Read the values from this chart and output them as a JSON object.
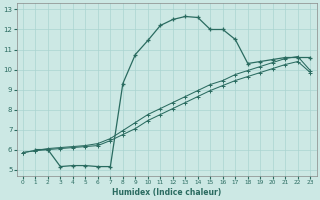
{
  "xlabel": "Humidex (Indice chaleur)",
  "bg_color": "#cce8e4",
  "grid_color": "#aad4d0",
  "line_color": "#2a6b60",
  "xlim": [
    -0.5,
    23.5
  ],
  "ylim": [
    4.7,
    13.3
  ],
  "xticks": [
    0,
    1,
    2,
    3,
    4,
    5,
    6,
    7,
    8,
    9,
    10,
    11,
    12,
    13,
    14,
    15,
    16,
    17,
    18,
    19,
    20,
    21,
    22,
    23
  ],
  "yticks": [
    5,
    6,
    7,
    8,
    9,
    10,
    11,
    12,
    13
  ],
  "line1_x": [
    1,
    2,
    3,
    4,
    5,
    6,
    7,
    8,
    9,
    10,
    11,
    12,
    13,
    14,
    15,
    16,
    17,
    18,
    19,
    20,
    21,
    22,
    23
  ],
  "line1_y": [
    6.0,
    6.0,
    5.15,
    5.2,
    5.2,
    5.15,
    5.15,
    9.3,
    10.75,
    11.45,
    12.2,
    12.5,
    12.65,
    12.6,
    12.0,
    12.0,
    11.5,
    10.3,
    10.4,
    10.5,
    10.6,
    10.6,
    10.6
  ],
  "line2_x": [
    0,
    1,
    2,
    3,
    4,
    5,
    6,
    7,
    8,
    9,
    10,
    11,
    12,
    13,
    14,
    15,
    16,
    17,
    18,
    19,
    20,
    21,
    22,
    23
  ],
  "line2_y": [
    5.85,
    5.95,
    6.05,
    6.1,
    6.15,
    6.2,
    6.3,
    6.55,
    6.95,
    7.35,
    7.75,
    8.05,
    8.35,
    8.65,
    8.95,
    9.25,
    9.45,
    9.75,
    9.95,
    10.15,
    10.35,
    10.55,
    10.65,
    9.95
  ],
  "line3_x": [
    0,
    1,
    2,
    3,
    4,
    5,
    6,
    7,
    8,
    9,
    10,
    11,
    12,
    13,
    14,
    15,
    16,
    17,
    18,
    19,
    20,
    21,
    22,
    23
  ],
  "line3_y": [
    5.85,
    5.95,
    6.0,
    6.05,
    6.1,
    6.15,
    6.2,
    6.45,
    6.75,
    7.05,
    7.45,
    7.75,
    8.05,
    8.35,
    8.65,
    8.95,
    9.2,
    9.45,
    9.65,
    9.85,
    10.05,
    10.25,
    10.4,
    9.85
  ]
}
